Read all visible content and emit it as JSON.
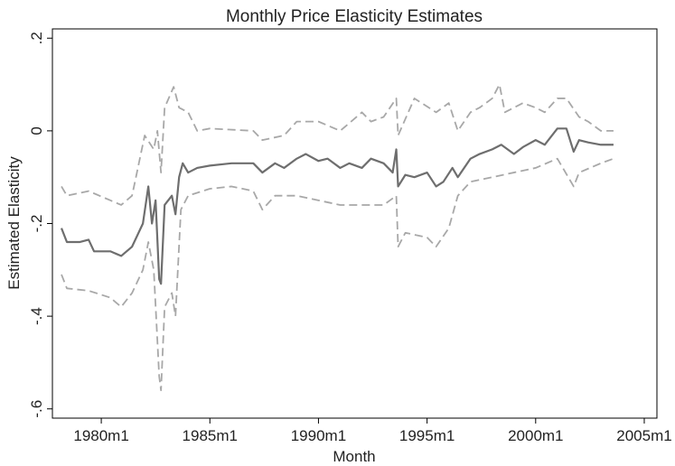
{
  "chart_data": {
    "type": "line",
    "title": "Monthly Price Elasticity Estimates",
    "xlabel": "Month",
    "ylabel": "Estimated Elasticity",
    "xlim": [
      "1977m10",
      "2005m8"
    ],
    "xticks": [
      "1980m1",
      "1985m1",
      "1990m1",
      "1995m1",
      "2000m1",
      "2005m1"
    ],
    "ylim": [
      -0.62,
      0.22
    ],
    "yticks": [
      {
        "value": 0.2,
        "label": ".2"
      },
      0,
      {
        "value": -0.2,
        "label": "-.2"
      },
      {
        "value": -0.4,
        "label": "-.4"
      },
      {
        "value": -0.6,
        "label": "-.6"
      }
    ],
    "grid": false,
    "series": [
      {
        "color": "#6e6e6e",
        "dashed": false,
        "x": [
          "1978m3",
          "1978m6",
          "1979m1",
          "1979m6",
          "1979m9",
          "1980m6",
          "1980m12",
          "1981m6",
          "1981m12",
          "1982m3",
          "1982m5",
          "1982m7",
          "1982m9",
          "1982m10",
          "1982m12",
          "1983m4",
          "1983m6",
          "1983m8",
          "1983m10",
          "1984m1",
          "1984m6",
          "1985m1",
          "1986m1",
          "1987m1",
          "1987m6",
          "1988m1",
          "1988m6",
          "1989m1",
          "1989m6",
          "1990m1",
          "1990m6",
          "1991m1",
          "1991m6",
          "1992m1",
          "1992m6",
          "1993m1",
          "1993m6",
          "1993m8",
          "1993m9",
          "1994m1",
          "1994m6",
          "1995m1",
          "1995m6",
          "1995m10",
          "1996m3",
          "1996m6",
          "1997m1",
          "1997m6",
          "1998m1",
          "1998m6",
          "1999m1",
          "1999m6",
          "2000m1",
          "2000m6",
          "2001m1",
          "2001m6",
          "2001m10",
          "2002m1",
          "2002m6",
          "2003m1",
          "2003m8"
        ],
        "values": [
          -0.21,
          -0.24,
          -0.24,
          -0.235,
          -0.26,
          -0.26,
          -0.27,
          -0.25,
          -0.2,
          -0.12,
          -0.2,
          -0.15,
          -0.32,
          -0.33,
          -0.16,
          -0.14,
          -0.18,
          -0.1,
          -0.07,
          -0.09,
          -0.08,
          -0.075,
          -0.07,
          -0.07,
          -0.09,
          -0.07,
          -0.08,
          -0.06,
          -0.05,
          -0.065,
          -0.06,
          -0.08,
          -0.07,
          -0.08,
          -0.06,
          -0.07,
          -0.09,
          -0.04,
          -0.12,
          -0.095,
          -0.1,
          -0.09,
          -0.12,
          -0.11,
          -0.08,
          -0.1,
          -0.06,
          -0.05,
          -0.04,
          -0.03,
          -0.05,
          -0.035,
          -0.02,
          -0.03,
          0.005,
          0.005,
          -0.045,
          -0.02,
          -0.025,
          -0.03,
          -0.03
        ]
      },
      {
        "color": "#a8a8a8",
        "dashed": true,
        "x": [
          "1978m3",
          "1978m6",
          "1979m6",
          "1980m6",
          "1980m12",
          "1981m6",
          "1982m1",
          "1982m6",
          "1982m8",
          "1982m10",
          "1982m12",
          "1983m5",
          "1983m8",
          "1984m1",
          "1984m6",
          "1985m1",
          "1987m1",
          "1987m6",
          "1988m6",
          "1989m1",
          "1990m1",
          "1991m1",
          "1992m1",
          "1992m6",
          "1993m1",
          "1993m8",
          "1993m9",
          "1994m6",
          "1995m6",
          "1996m1",
          "1996m6",
          "1997m1",
          "1997m6",
          "1998m1",
          "1998m5",
          "1998m8",
          "1999m6",
          "2000m1",
          "2000m6",
          "2001m1",
          "2001m6",
          "2002m1",
          "2002m6",
          "2003m1",
          "2003m8"
        ],
        "values": [
          -0.12,
          -0.14,
          -0.13,
          -0.15,
          -0.16,
          -0.14,
          -0.01,
          -0.04,
          0.0,
          -0.09,
          0.05,
          0.095,
          0.05,
          0.04,
          0.0,
          0.005,
          0.0,
          -0.02,
          -0.01,
          0.02,
          0.02,
          0.0,
          0.04,
          0.02,
          0.03,
          0.07,
          -0.01,
          0.07,
          0.04,
          0.06,
          0.0,
          0.04,
          0.05,
          0.07,
          0.1,
          0.04,
          0.06,
          0.05,
          0.04,
          0.07,
          0.07,
          0.03,
          0.02,
          0.0,
          0.0
        ]
      },
      {
        "color": "#a8a8a8",
        "dashed": true,
        "x": [
          "1978m3",
          "1978m6",
          "1979m6",
          "1980m6",
          "1980m12",
          "1981m6",
          "1981m12",
          "1982m3",
          "1982m6",
          "1982m9",
          "1982m10",
          "1982m12",
          "1983m4",
          "1983m6",
          "1983m9",
          "1984m1",
          "1985m1",
          "1986m1",
          "1987m1",
          "1987m6",
          "1988m1",
          "1989m1",
          "1990m1",
          "1991m1",
          "1992m1",
          "1993m1",
          "1993m8",
          "1993m9",
          "1994m1",
          "1995m1",
          "1995m6",
          "1996m1",
          "1996m6",
          "1997m1",
          "1998m1",
          "1999m1",
          "2000m1",
          "2001m1",
          "2001m10",
          "2002m1",
          "2003m1",
          "2003m8"
        ],
        "values": [
          -0.31,
          -0.34,
          -0.345,
          -0.36,
          -0.38,
          -0.35,
          -0.3,
          -0.24,
          -0.3,
          -0.53,
          -0.56,
          -0.38,
          -0.35,
          -0.4,
          -0.17,
          -0.14,
          -0.125,
          -0.12,
          -0.13,
          -0.17,
          -0.14,
          -0.14,
          -0.15,
          -0.16,
          -0.16,
          -0.16,
          -0.14,
          -0.25,
          -0.22,
          -0.23,
          -0.25,
          -0.21,
          -0.14,
          -0.11,
          -0.1,
          -0.09,
          -0.08,
          -0.06,
          -0.12,
          -0.09,
          -0.07,
          -0.06
        ]
      }
    ]
  }
}
